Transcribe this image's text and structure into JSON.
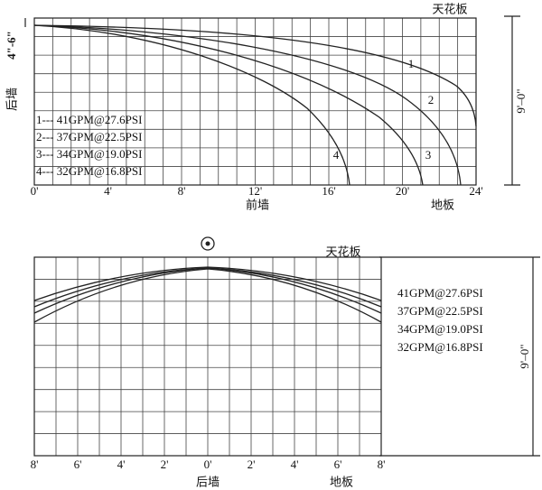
{
  "top_diagram": {
    "ceiling_label": "天花板",
    "front_wall_label": "前墙",
    "floor_label": "地板",
    "rear_wall_label": "后墙",
    "offset_label": "4\"-6\"",
    "height_label": "9'–0\"",
    "x_tick_labels": [
      "0'",
      "4'",
      "8'",
      "12'",
      "16'",
      "20'",
      "24'"
    ],
    "legend": [
      "1--- 41GPM@27.6PSI",
      "2--- 37GPM@22.5PSI",
      "3--- 34GPM@19.0PSI",
      "4--- 32GPM@16.8PSI"
    ],
    "curve_labels": [
      "1",
      "2",
      "3",
      "4"
    ]
  },
  "bottom_diagram": {
    "ceiling_label": "天花板",
    "rear_wall_label": "后墙",
    "floor_label": "地板",
    "height_label": "9'–0\"",
    "x_tick_labels": [
      "8'",
      "6'",
      "4'",
      "2'",
      "0'",
      "2'",
      "4'",
      "6'",
      "8'"
    ],
    "legend": [
      "41GPM@27.6PSI",
      "37GPM@22.5PSI",
      "34GPM@19.0PSI",
      "32GPM@16.8PSI"
    ]
  }
}
